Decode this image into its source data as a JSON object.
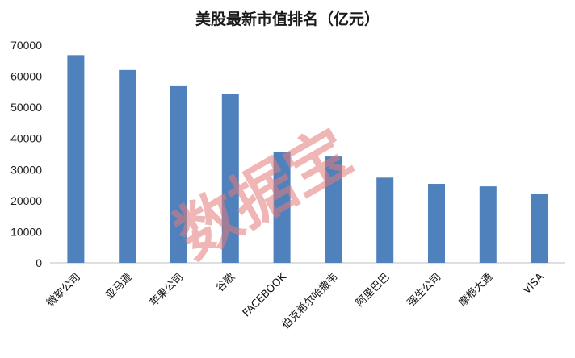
{
  "watermark": "数据宝",
  "chart_data": {
    "type": "bar",
    "title": "美股最新市值排名（亿元）",
    "xlabel": "",
    "ylabel": "",
    "categories": [
      "微软公司",
      "亚马逊",
      "苹果公司",
      "谷歌",
      "FACEBOOK",
      "伯克希尔哈撒韦",
      "阿里巴巴",
      "强生公司",
      "摩根大通",
      "VISA"
    ],
    "values": [
      66800,
      62000,
      56800,
      54400,
      35700,
      34200,
      27400,
      25400,
      24600,
      22300
    ],
    "yticks": [
      0,
      10000,
      20000,
      30000,
      40000,
      50000,
      60000,
      70000
    ],
    "ylim": [
      0,
      70000
    ],
    "grid": false,
    "bar_color": "#4f81bd",
    "legend": "none"
  }
}
